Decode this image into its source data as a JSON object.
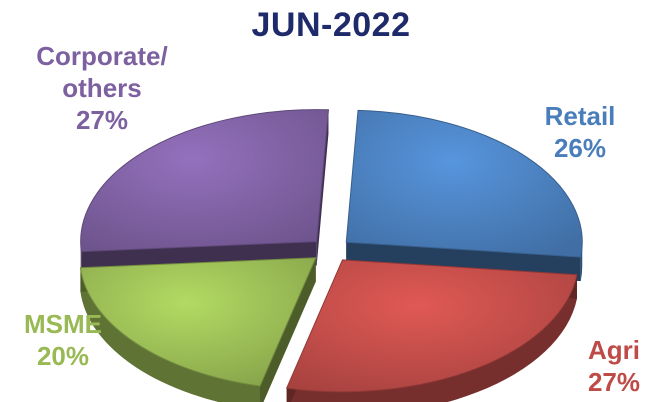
{
  "chart_data": {
    "type": "pie",
    "title": "JUN-2022",
    "slices": [
      {
        "label": "Retail",
        "value": 26,
        "pct_label": "26%",
        "color": "#4a7ebb"
      },
      {
        "label": "Agri",
        "value": 27,
        "pct_label": "27%",
        "color": "#be4b48"
      },
      {
        "label": "MSME",
        "value": 20,
        "pct_label": "20%",
        "color": "#98b954"
      },
      {
        "label": "Corporate/ others",
        "value": 27,
        "pct_label": "27%",
        "color": "#7d60a0"
      }
    ],
    "exploded": true,
    "style": "3d"
  }
}
